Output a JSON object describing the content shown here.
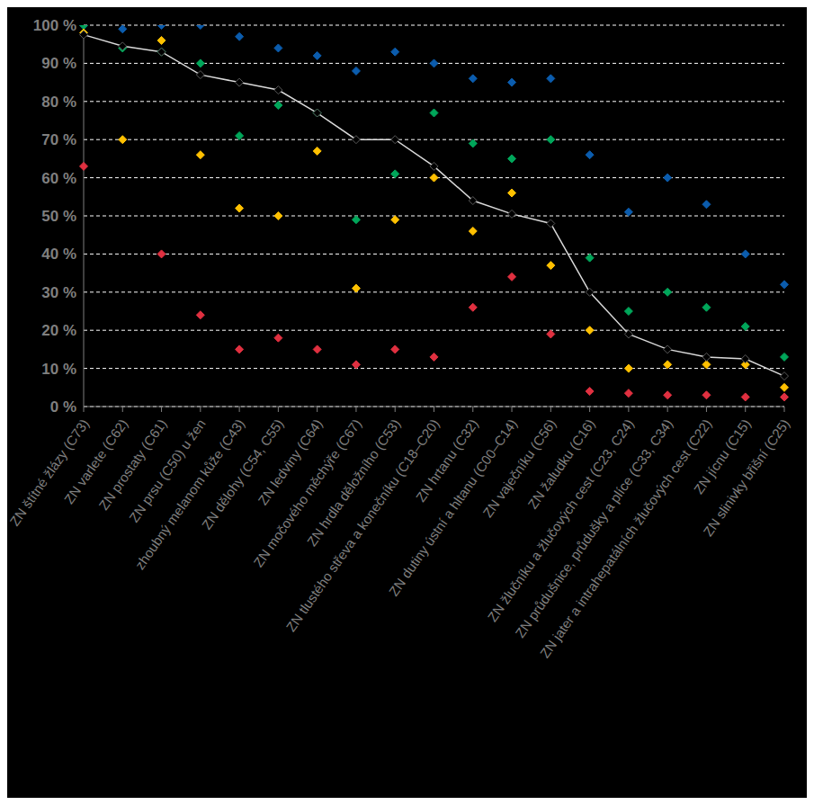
{
  "chart_data": {
    "type": "scatter",
    "categories": [
      "ZN štítné žlázy (C73)",
      "ZN varlete (C62)",
      "ZN prostaty (C61)",
      "ZN prsu (C50) u žen",
      "zhoubný melanom kůže (C43)",
      "ZN dělohy (C54, C55)",
      "ZN ledviny (C64)",
      "ZN močového měchýře (C67)",
      "ZN hrdla děložního (C53)",
      "ZN tlustého střeva a konečníku (C18–C20)",
      "ZN hrtanu (C32)",
      "ZN dutiny ústní a hltanu (C00–C14)",
      "ZN vaječníku (C56)",
      "ZN žaludku (C16)",
      "ZN žlučníku a žlučových cest (C23, C24)",
      "ZN průdušnice, průdušky a plíce (C33, C34)",
      "ZN jater a intrahepatálních žlučových cest (C22)",
      "ZN jícnu (C15)",
      "ZN slinivky břišní (C25)"
    ],
    "series": [
      {
        "color": "#0b5cad",
        "marker": "diamond",
        "values": [
          100,
          99,
          100,
          100,
          97,
          94,
          92,
          88,
          93,
          90,
          86,
          85,
          86,
          66,
          51,
          60,
          53,
          40,
          32
        ]
      },
      {
        "color": "#00a65a",
        "marker": "diamond",
        "values": [
          100,
          94,
          93,
          90,
          71,
          79,
          77,
          49,
          61,
          77,
          69,
          65,
          70,
          39,
          25,
          30,
          26,
          21,
          13
        ]
      },
      {
        "color": "#ffc000",
        "marker": "diamond",
        "values": [
          98,
          70,
          96,
          66,
          52,
          50,
          67,
          31,
          49,
          60,
          46,
          56,
          37,
          20,
          10,
          11,
          11,
          11,
          5
        ]
      },
      {
        "color": "#e03040",
        "marker": "diamond",
        "values": [
          63,
          null,
          40,
          24,
          15,
          18,
          15,
          11,
          15,
          13,
          26,
          34,
          19,
          4,
          3.5,
          3,
          3,
          2.5,
          2.5
        ]
      },
      {
        "type": "line",
        "color": "#000000",
        "marker": "diamond",
        "values": [
          97.5,
          94.5,
          93,
          87,
          85,
          83,
          77,
          70,
          70,
          63,
          54,
          50.5,
          48,
          30,
          19,
          15,
          13,
          12.5,
          8
        ]
      }
    ],
    "ylim": [
      0,
      100
    ],
    "yticks": [
      {
        "value": 0,
        "label": "0 %"
      },
      {
        "value": 10,
        "label": "10 %"
      },
      {
        "value": 20,
        "label": "20 %"
      },
      {
        "value": 30,
        "label": "30 %"
      },
      {
        "value": 40,
        "label": "40 %"
      },
      {
        "value": 50,
        "label": "50 %"
      },
      {
        "value": 60,
        "label": "60 %"
      },
      {
        "value": 70,
        "label": "70 %"
      },
      {
        "value": 80,
        "label": "80 %"
      },
      {
        "value": 90,
        "label": "90 %"
      },
      {
        "value": 100,
        "label": "100 %"
      }
    ],
    "grid": true
  }
}
